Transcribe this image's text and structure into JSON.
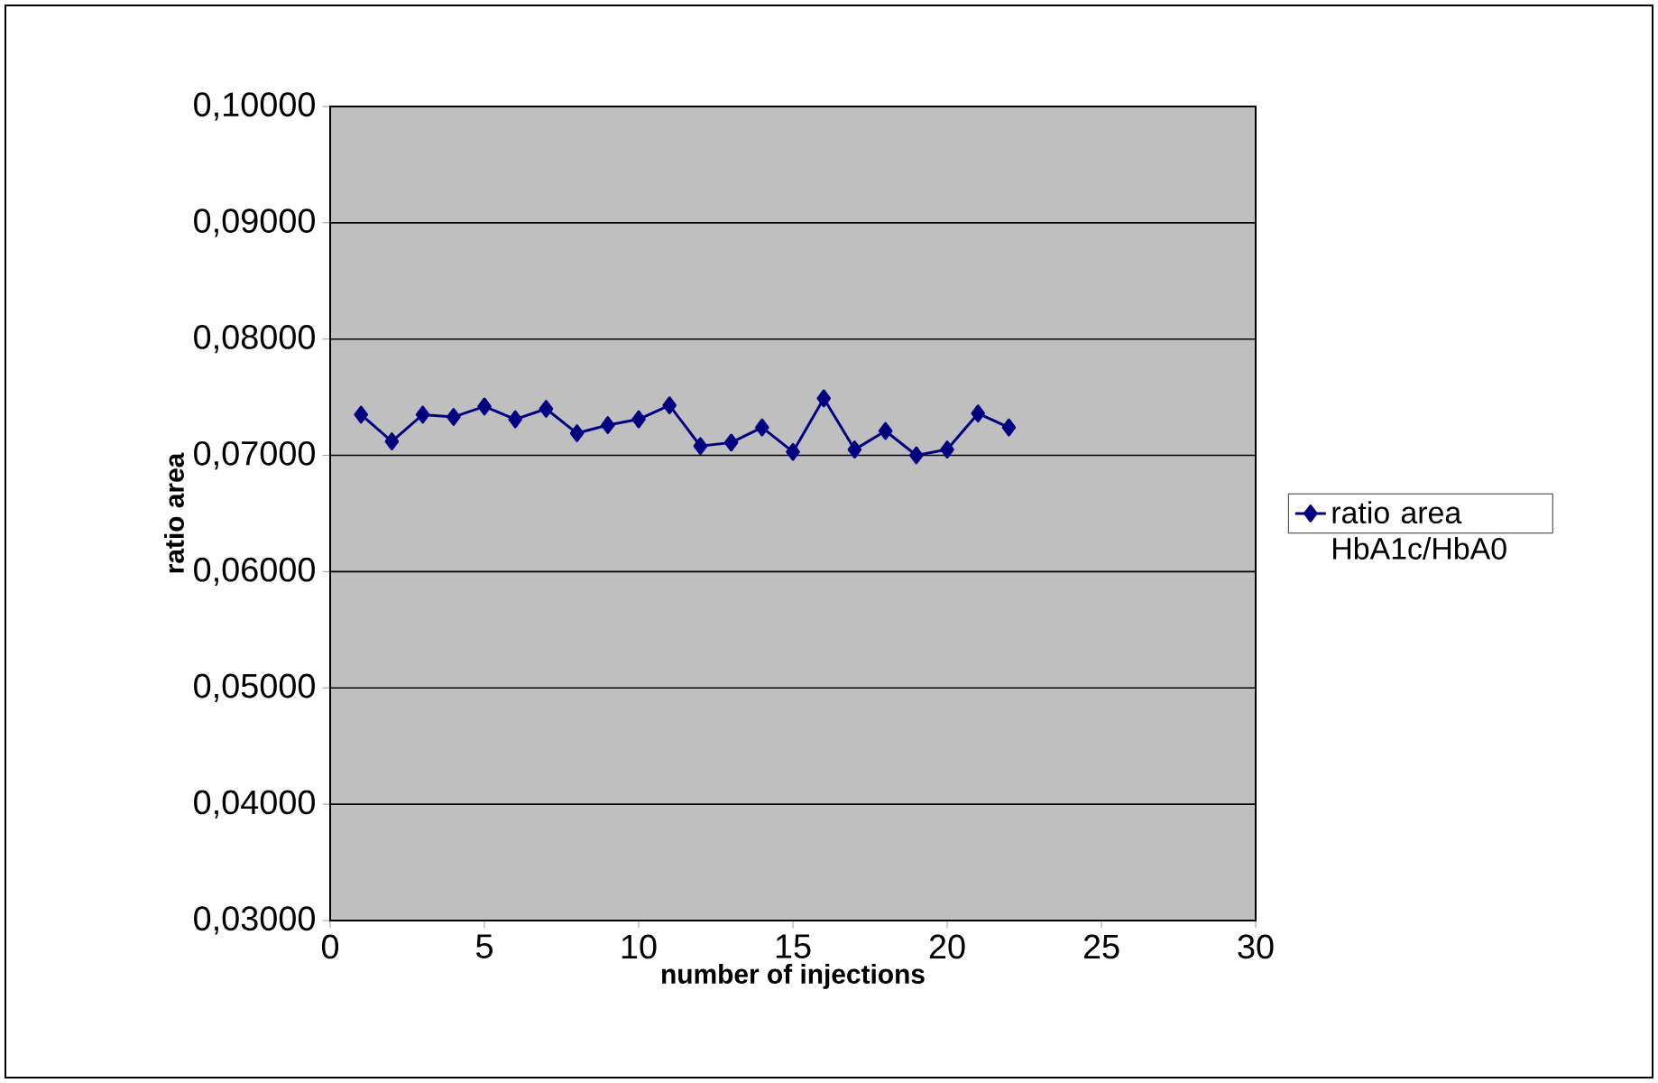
{
  "chart_data": {
    "type": "line",
    "xlabel": "number of injections",
    "ylabel": "ratio area",
    "x": [
      1,
      2,
      3,
      4,
      5,
      6,
      7,
      8,
      9,
      10,
      11,
      12,
      13,
      14,
      15,
      16,
      17,
      18,
      19,
      20,
      21,
      22
    ],
    "series": [
      {
        "name": "ratio area HbA1c/HbA0",
        "color": "#000080",
        "values": [
          0.0735,
          0.0712,
          0.0735,
          0.0733,
          0.0742,
          0.0731,
          0.074,
          0.0719,
          0.0726,
          0.0731,
          0.0743,
          0.0708,
          0.0711,
          0.0724,
          0.0703,
          0.0749,
          0.0705,
          0.0721,
          0.07,
          0.0705,
          0.0736,
          0.0724
        ]
      }
    ],
    "xlim": [
      0,
      30
    ],
    "xticks": [
      0,
      5,
      10,
      15,
      20,
      25,
      30
    ],
    "ylim": [
      0.03,
      0.1
    ],
    "yticks": [
      {
        "value": 0.03,
        "label": "0,03000"
      },
      {
        "value": 0.04,
        "label": "0,04000"
      },
      {
        "value": 0.05,
        "label": "0,05000"
      },
      {
        "value": 0.06,
        "label": "0,06000"
      },
      {
        "value": 0.07,
        "label": "0,07000"
      },
      {
        "value": 0.08,
        "label": "0,08000"
      },
      {
        "value": 0.09,
        "label": "0,09000"
      },
      {
        "value": 0.1,
        "label": "0,10000"
      }
    ],
    "grid": "y",
    "legend": "right",
    "marker": "diamond",
    "line_style": "solid"
  }
}
